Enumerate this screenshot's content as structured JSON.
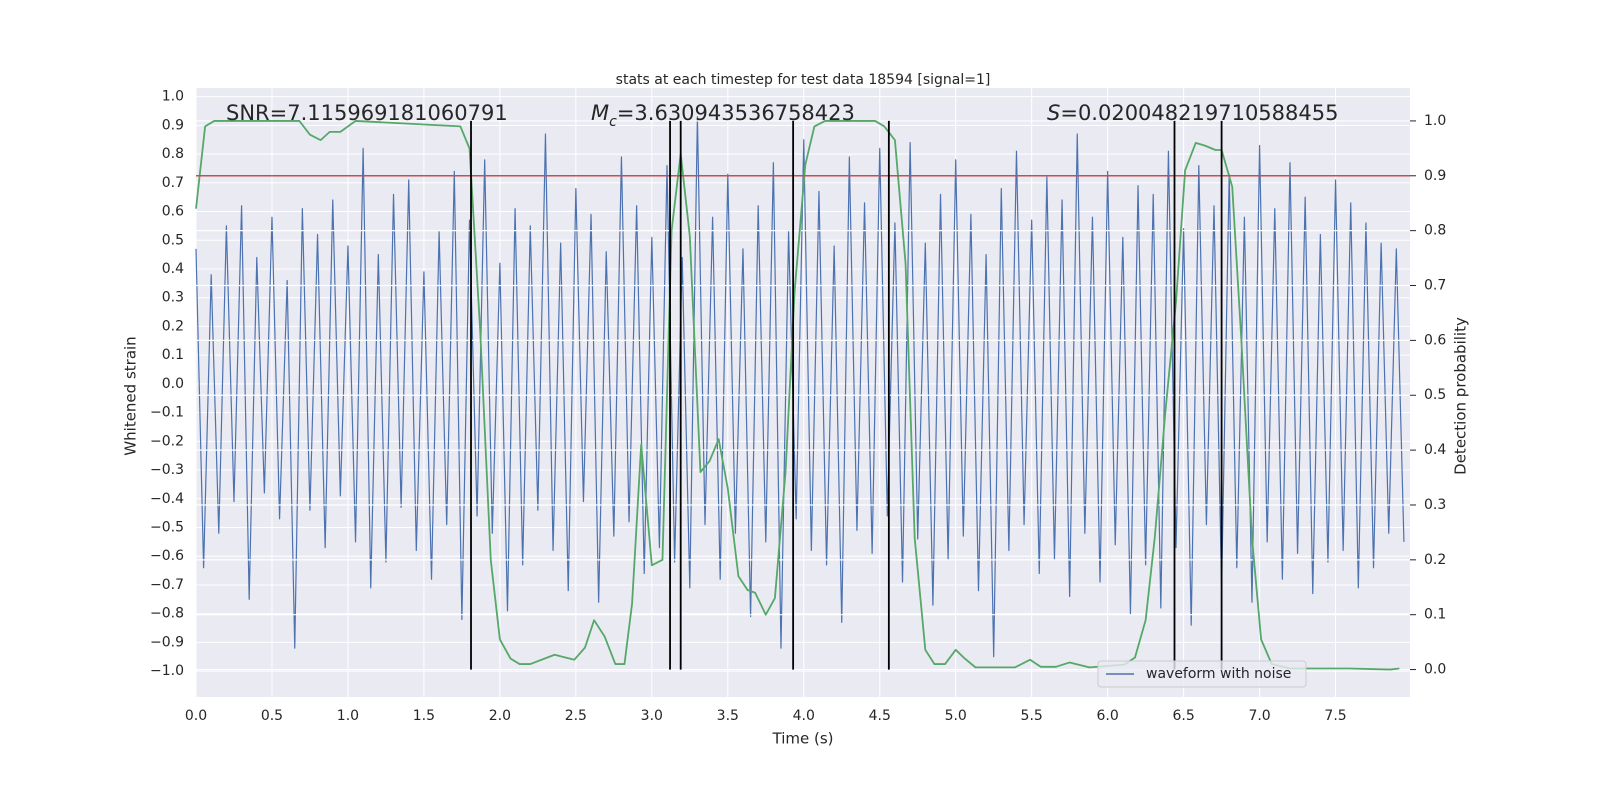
{
  "chart_data": {
    "type": "line",
    "title": "stats at each timestep for test data 18594 [signal=1]",
    "xlabel": "Time (s)",
    "ylabel": "Whitened strain",
    "y2label": "Detection probability",
    "annotations": [
      {
        "text": "SNR=7.115969181060791"
      },
      {
        "symbol": "M",
        "subscript": "c",
        "text": "=3.630943536758423"
      },
      {
        "symbol": "S",
        "text": "=0.020048219710588455"
      }
    ],
    "legend": "lower right",
    "grid": true,
    "xlim": [
      0,
      7.99
    ],
    "ylim": [
      -1.09,
      1.03
    ],
    "y2lim": [
      -0.05,
      1.06
    ],
    "xticks": [
      {
        "value": 0,
        "label": "0.0"
      },
      0.5,
      {
        "value": 1,
        "label": "1.0"
      },
      1.5,
      {
        "value": 2,
        "label": "2.0"
      },
      2.5,
      {
        "value": 3,
        "label": "3.0"
      },
      3.5,
      {
        "value": 4,
        "label": "4.0"
      },
      4.5,
      {
        "value": 5,
        "label": "5.0"
      },
      5.5,
      {
        "value": 6,
        "label": "6.0"
      },
      6.5,
      {
        "value": 7,
        "label": "7.0"
      },
      7.5
    ],
    "yticks": [
      {
        "value": 1,
        "label": "1.0"
      },
      0.9,
      0.8,
      0.7,
      0.6,
      0.5,
      0.4,
      0.3,
      0.2,
      0.1,
      {
        "value": 0,
        "label": "0.0"
      },
      {
        "value": -0.1,
        "label": "−0.1"
      },
      {
        "value": -0.2,
        "label": "−0.2"
      },
      {
        "value": -0.3,
        "label": "−0.3"
      },
      {
        "value": -0.4,
        "label": "−0.4"
      },
      {
        "value": -0.5,
        "label": "−0.5"
      },
      {
        "value": -0.6,
        "label": "−0.6"
      },
      {
        "value": -0.7,
        "label": "−0.7"
      },
      {
        "value": -0.8,
        "label": "−0.8"
      },
      {
        "value": -0.9,
        "label": "−0.9"
      },
      {
        "value": -1,
        "label": "−1.0"
      }
    ],
    "y2ticks": [
      {
        "value": 0,
        "label": "0.0"
      },
      0.1,
      0.2,
      0.3,
      0.4,
      0.5,
      0.6,
      0.7,
      0.8,
      0.9,
      {
        "value": 1,
        "label": "1.0"
      }
    ],
    "threshold": {
      "value": 0.9,
      "axis": "y2",
      "color": "#c44e52"
    },
    "vlines": {
      "x": [
        1.81,
        3.12,
        3.19,
        3.93,
        4.56,
        6.44,
        6.75
      ],
      "range": [
        0,
        1
      ],
      "axis": "y2",
      "color": "#000000"
    },
    "series": [
      {
        "name": "waveform with noise",
        "color": "#4c72b0",
        "x": [
          0,
          0.05,
          0.1,
          0.15,
          0.2,
          0.25,
          0.3,
          0.35,
          0.4,
          0.45,
          0.5,
          0.55,
          0.6,
          0.65,
          0.7,
          0.75,
          0.8,
          0.85,
          0.9,
          0.95,
          1,
          1.05,
          1.1,
          1.15,
          1.2,
          1.25,
          1.3,
          1.35,
          1.4,
          1.45,
          1.5,
          1.55,
          1.6,
          1.65,
          1.7,
          1.75,
          1.8,
          1.85,
          1.9,
          1.95,
          2,
          2.05,
          2.1,
          2.15,
          2.2,
          2.25,
          2.3,
          2.35,
          2.4,
          2.45,
          2.5,
          2.55,
          2.6,
          2.65,
          2.7,
          2.75,
          2.8,
          2.85,
          2.9,
          2.95,
          3,
          3.05,
          3.1,
          3.15,
          3.2,
          3.25,
          3.3,
          3.35,
          3.4,
          3.45,
          3.5,
          3.55,
          3.6,
          3.65,
          3.7,
          3.75,
          3.8,
          3.85,
          3.9,
          3.95,
          4,
          4.05,
          4.1,
          4.15,
          4.2,
          4.25,
          4.3,
          4.35,
          4.4,
          4.45,
          4.5,
          4.55,
          4.6,
          4.65,
          4.7,
          4.75,
          4.8,
          4.85,
          4.9,
          4.95,
          5,
          5.05,
          5.1,
          5.15,
          5.2,
          5.25,
          5.3,
          5.35,
          5.4,
          5.45,
          5.5,
          5.55,
          5.6,
          5.65,
          5.7,
          5.75,
          5.8,
          5.85,
          5.9,
          5.95,
          6,
          6.05,
          6.1,
          6.15,
          6.2,
          6.25,
          6.3,
          6.35,
          6.4,
          6.45,
          6.5,
          6.55,
          6.6,
          6.65,
          6.7,
          6.75,
          6.8,
          6.85,
          6.9,
          6.95,
          7,
          7.05,
          7.1,
          7.15,
          7.2,
          7.25,
          7.3,
          7.35,
          7.4,
          7.45,
          7.5,
          7.55,
          7.6,
          7.65,
          7.7,
          7.75,
          7.8,
          7.85,
          7.9,
          7.95
        ],
        "values": [
          0.47,
          -0.64,
          0.38,
          -0.52,
          0.55,
          -0.41,
          0.62,
          -0.75,
          0.44,
          -0.38,
          0.58,
          -0.47,
          0.36,
          -0.92,
          0.61,
          -0.44,
          0.52,
          -0.57,
          0.64,
          -0.39,
          0.48,
          -0.55,
          0.82,
          -0.71,
          0.45,
          -0.62,
          0.66,
          -0.43,
          0.71,
          -0.58,
          0.39,
          -0.68,
          0.53,
          -0.49,
          0.74,
          -0.82,
          0.57,
          -0.46,
          0.78,
          -0.52,
          0.42,
          -0.79,
          0.61,
          -0.63,
          0.55,
          -0.44,
          0.87,
          -0.58,
          0.49,
          -0.72,
          0.68,
          -0.41,
          0.59,
          -0.76,
          0.46,
          -0.53,
          0.79,
          -0.48,
          0.62,
          -0.66,
          0.51,
          -0.57,
          0.76,
          -0.62,
          0.44,
          -0.71,
          0.93,
          -0.49,
          0.58,
          -0.68,
          0.73,
          -0.52,
          0.47,
          -0.81,
          0.62,
          -0.55,
          0.77,
          -0.92,
          0.53,
          -0.47,
          0.85,
          -0.58,
          0.67,
          -0.63,
          0.48,
          -0.83,
          0.79,
          -0.51,
          0.63,
          -0.59,
          0.82,
          -0.46,
          0.56,
          -0.69,
          0.84,
          -0.54,
          0.49,
          -0.77,
          0.66,
          -0.61,
          0.78,
          -0.53,
          0.59,
          -0.72,
          0.45,
          -0.95,
          0.68,
          -0.58,
          0.81,
          -0.49,
          0.57,
          -0.66,
          0.72,
          -0.61,
          0.64,
          -0.74,
          0.87,
          -0.52,
          0.58,
          -0.69,
          0.74,
          -0.56,
          0.51,
          -0.8,
          0.69,
          -0.63,
          0.66,
          -0.78,
          0.81,
          -0.57,
          0.54,
          -0.84,
          0.76,
          -0.49,
          0.62,
          -0.71,
          0.73,
          -0.64,
          0.58,
          -0.76,
          0.83,
          -0.55,
          0.61,
          -0.68,
          0.77,
          -0.59,
          0.65,
          -0.73,
          0.52,
          -0.62,
          0.71,
          -0.58,
          0.63,
          -0.71,
          0.56,
          -0.64,
          0.49,
          -0.52,
          0.47,
          -0.55
        ]
      },
      {
        "color": "#55a868",
        "axis": "y2",
        "x": [
          0,
          0.06,
          0.12,
          0.68,
          0.75,
          0.82,
          0.88,
          0.95,
          1.05,
          1.74,
          1.8,
          1.87,
          1.94,
          2,
          2.07,
          2.13,
          2.2,
          2.36,
          2.49,
          2.56,
          2.62,
          2.69,
          2.76,
          2.82,
          2.87,
          2.93,
          3,
          3.07,
          3.13,
          3.19,
          3.25,
          3.32,
          3.38,
          3.44,
          3.5,
          3.57,
          3.63,
          3.68,
          3.75,
          3.81,
          3.88,
          3.94,
          4.01,
          4.07,
          4.14,
          4.47,
          4.53,
          4.6,
          4.67,
          4.73,
          4.8,
          4.86,
          4.93,
          5,
          5.06,
          5.13,
          5.39,
          5.49,
          5.56,
          5.66,
          5.75,
          5.88,
          6.02,
          6.11,
          6.18,
          6.25,
          6.31,
          6.38,
          6.45,
          6.51,
          6.58,
          6.64,
          6.71,
          6.75,
          6.82,
          6.88,
          6.95,
          7.01,
          7.08,
          7.2,
          7.59,
          7.86,
          7.92
        ],
        "values": [
          0.84,
          0.99,
          1,
          1,
          0.975,
          0.965,
          0.98,
          0.98,
          1,
          0.99,
          0.95,
          0.62,
          0.2,
          0.055,
          0.02,
          0.01,
          0.01,
          0.027,
          0.018,
          0.04,
          0.09,
          0.06,
          0.01,
          0.01,
          0.12,
          0.41,
          0.19,
          0.2,
          0.8,
          0.94,
          0.79,
          0.36,
          0.38,
          0.42,
          0.33,
          0.17,
          0.145,
          0.14,
          0.1,
          0.13,
          0.36,
          0.69,
          0.92,
          0.99,
          1,
          1,
          0.99,
          0.965,
          0.74,
          0.24,
          0.036,
          0.01,
          0.01,
          0.036,
          0.02,
          0.004,
          0.004,
          0.018,
          0.005,
          0.005,
          0.013,
          0.004,
          0.007,
          0.009,
          0.022,
          0.09,
          0.24,
          0.47,
          0.67,
          0.91,
          0.96,
          0.955,
          0.947,
          0.947,
          0.88,
          0.6,
          0.24,
          0.055,
          0.01,
          0.002,
          0.002,
          0,
          0.002
        ]
      }
    ]
  }
}
